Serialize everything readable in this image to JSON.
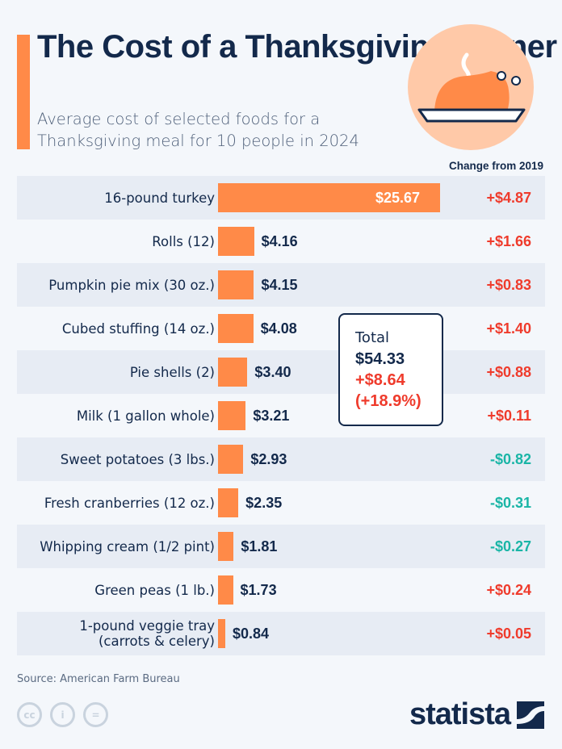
{
  "title": "The Cost of a Thanksgiving Dinner",
  "subtitle": "Average cost of selected foods for a Thanksgiving meal for 10 people in 2024",
  "change_header": "Change from 2019",
  "colors": {
    "bar": "#ff8a48",
    "increase": "#ef3b2c",
    "decrease": "#1ab5a6",
    "text": "#13294b"
  },
  "chart_data": {
    "type": "bar",
    "orientation": "horizontal",
    "title": "The Cost of a Thanksgiving Dinner",
    "categories": [
      "16-pound turkey",
      "Rolls (12)",
      "Pumpkin pie mix (30 oz.)",
      "Cubed stuffing (14 oz.)",
      "Pie shells (2)",
      "Milk (1 gallon whole)",
      "Sweet potatoes (3 lbs.)",
      "Fresh cranberries (12 oz.)",
      "Whipping cream (1/2 pint)",
      "Green peas (1 lb.)",
      "1-pound veggie tray\n(carrots & celery)"
    ],
    "values": [
      25.67,
      4.16,
      4.15,
      4.08,
      3.4,
      3.21,
      2.93,
      2.35,
      1.81,
      1.73,
      0.84
    ],
    "value_labels": [
      "$25.67",
      "$4.16",
      "$4.15",
      "$4.08",
      "$3.40",
      "$3.21",
      "$2.93",
      "$2.35",
      "$1.81",
      "$1.73",
      "$0.84"
    ],
    "change_labels": [
      "+$4.87",
      "+$1.66",
      "+$0.83",
      "+$1.40",
      "+$0.88",
      "+$0.11",
      "-$0.82",
      "-$0.31",
      "-$0.27",
      "+$0.24",
      "+$0.05"
    ],
    "change_values": [
      4.87,
      1.66,
      0.83,
      1.4,
      0.88,
      0.11,
      -0.82,
      -0.31,
      -0.27,
      0.24,
      0.05
    ]
  },
  "total": {
    "label": "Total",
    "value": "$54.33",
    "change": "+$8.64",
    "change_pct": "(+18.9%)"
  },
  "source": "Source: American Farm Bureau",
  "license_icons": [
    "cc-icon",
    "attribution-icon",
    "no-derivatives-icon"
  ],
  "logo": "statista"
}
